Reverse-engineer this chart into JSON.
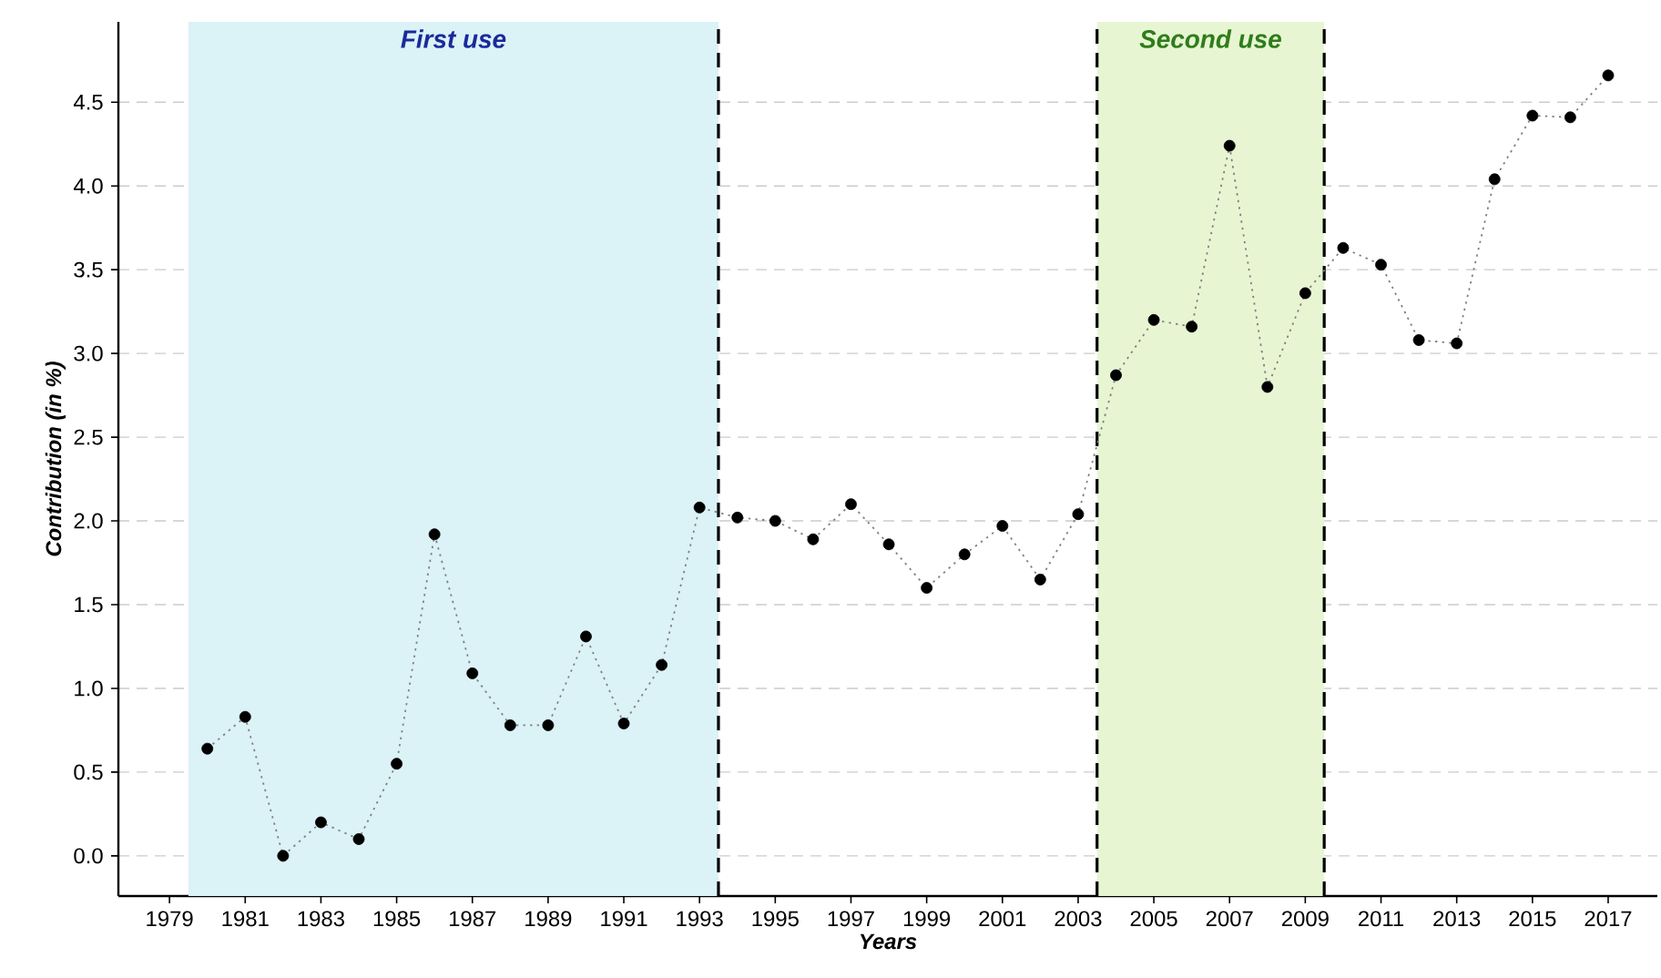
{
  "chart_data": {
    "type": "line",
    "xlabel": "Years",
    "ylabel": "Contribution (in %)",
    "x": [
      1980,
      1981,
      1982,
      1983,
      1984,
      1985,
      1986,
      1987,
      1988,
      1989,
      1990,
      1991,
      1992,
      1993,
      1994,
      1995,
      1996,
      1997,
      1998,
      1999,
      2000,
      2001,
      2002,
      2003,
      2004,
      2005,
      2006,
      2007,
      2008,
      2009,
      2010,
      2011,
      2012,
      2013,
      2014,
      2015,
      2016,
      2017
    ],
    "series": [
      {
        "color": "#000000",
        "values": [
          0.64,
          0.83,
          0.0,
          0.2,
          0.1,
          0.55,
          1.92,
          1.09,
          0.78,
          0.78,
          1.31,
          0.79,
          1.14,
          2.08,
          2.02,
          2.0,
          1.89,
          2.1,
          1.86,
          1.6,
          1.8,
          1.97,
          1.65,
          2.04,
          2.87,
          3.2,
          3.16,
          4.24,
          2.8,
          3.36,
          3.63,
          3.53,
          3.08,
          3.06,
          4.04,
          4.42,
          4.41,
          4.66
        ]
      }
    ],
    "marker": "circle",
    "line_style": "dotted",
    "grid": "y",
    "xlim": [
      1977.65,
      2018.3
    ],
    "ylim": [
      -0.24,
      4.98
    ],
    "xticks": [
      1979,
      1981,
      1983,
      1985,
      1987,
      1989,
      1991,
      1993,
      1995,
      1997,
      1999,
      2001,
      2003,
      2005,
      2007,
      2009,
      2011,
      2013,
      2015,
      2017
    ],
    "yticks": [
      {
        "value": 0,
        "label": "0.0"
      },
      {
        "value": 0.5,
        "label": "0.5"
      },
      {
        "value": 1,
        "label": "1.0"
      },
      {
        "value": 1.5,
        "label": "1.5"
      },
      {
        "value": 2,
        "label": "2.0"
      },
      {
        "value": 2.5,
        "label": "2.5"
      },
      {
        "value": 3,
        "label": "3.0"
      },
      {
        "value": 3.5,
        "label": "3.5"
      },
      {
        "value": 4,
        "label": "4.0"
      },
      {
        "value": 4.5,
        "label": "4.5"
      }
    ],
    "bands": [
      {
        "axis": "x",
        "from": 1979.5,
        "to": 1993.5,
        "label": "First use",
        "color": "#dbf2f7"
      },
      {
        "axis": "x",
        "from": 2003.5,
        "to": 2009.5,
        "label": "Second use",
        "color": "#e8f5d3"
      }
    ],
    "ref_lines": [
      {
        "axis": "x",
        "value": 1993.5,
        "color": "#000000",
        "line_style": "dashed"
      },
      {
        "axis": "x",
        "value": 2003.5,
        "color": "#000000",
        "line_style": "dashed"
      },
      {
        "axis": "x",
        "value": 2009.5,
        "color": "#000000",
        "line_style": "dashed"
      }
    ]
  }
}
